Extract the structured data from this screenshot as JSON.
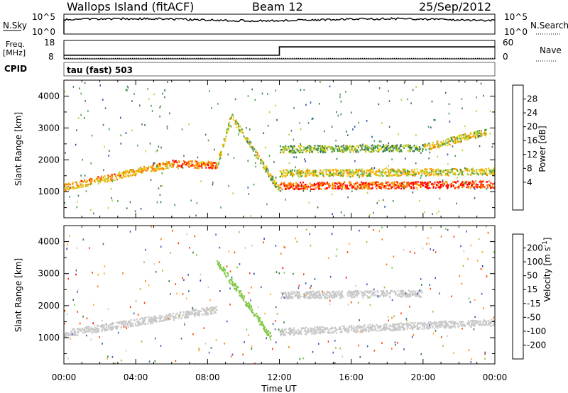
{
  "header": {
    "station": "Wallops Island (fitACF)",
    "beam": "Beam 12",
    "date": "25/Sep/2012"
  },
  "noise_panel": {
    "left_label": "N.Sky",
    "right_label": "N.Search",
    "left_ticks": [
      "10^5",
      "10^0"
    ],
    "right_ticks": [
      "10^5",
      "10^0"
    ]
  },
  "freq_panel": {
    "left_label_1": "Freq.",
    "left_label_2": "[MHz]",
    "right_label": "Nave",
    "left_ticks": [
      "18",
      "8"
    ],
    "right_ticks": [
      "60",
      "0"
    ],
    "cpid_label": "CPID",
    "cpid_value": "tau (fast) 503"
  },
  "colorbars": {
    "power": {
      "label": "Power [dB]",
      "ticks": [
        "28",
        "24",
        "20",
        "16",
        "12",
        "8",
        "4"
      ],
      "colors": [
        "#ff0000",
        "#ff6a00",
        "#ff9900",
        "#f0c800",
        "#b4d23c",
        "#46a046",
        "#3c7850",
        "#2850a0",
        "#0000ff"
      ]
    },
    "velocity": {
      "label": "Velocity [m s^-1]",
      "ticks": [
        "200",
        "100",
        "50",
        "15",
        "-15",
        "-50",
        "-100",
        "-200"
      ],
      "colors": [
        "#1e32b4",
        "#3c5ab4",
        "#2e7d32",
        "#82c846",
        "#c8c8c8",
        "#ffa532",
        "#ff7800",
        "#ff3c00",
        "#ff0000"
      ]
    }
  },
  "axes": {
    "ylabel": "Slant Range [km]",
    "yticks": [
      "1000",
      "2000",
      "3000",
      "4000"
    ],
    "xticks": [
      "00:00",
      "04:00",
      "08:00",
      "12:00",
      "16:00",
      "20:00",
      "00:00"
    ],
    "xlabel": "Time UT"
  },
  "chart_data": {
    "type": "heatmap",
    "x_range_hours": [
      0,
      24
    ],
    "y_range_km": [
      180,
      4500
    ],
    "power_features": [
      {
        "from": 0.0,
        "to": 6.0,
        "range_start": 1150,
        "range_end": 1900,
        "power_db": 20
      },
      {
        "from": 6.0,
        "to": 8.5,
        "range_start": 1900,
        "range_end": 1850,
        "power_db": 24
      },
      {
        "from": 8.5,
        "to": 9.3,
        "range_start": 1850,
        "range_end": 3400,
        "power_db": 16
      },
      {
        "from": 9.3,
        "to": 12.0,
        "range_start": 3400,
        "range_end": 1050,
        "power_db": 14
      },
      {
        "from": 12.0,
        "to": 24.0,
        "range_start": 1200,
        "range_end": 1250,
        "power_db": 26
      },
      {
        "from": 12.0,
        "to": 24.0,
        "range_start": 1600,
        "range_end": 1650,
        "power_db": 16
      },
      {
        "from": 12.0,
        "to": 20.0,
        "range_start": 2350,
        "range_end": 2400,
        "power_db": 12
      },
      {
        "from": 20.0,
        "to": 23.5,
        "range_start": 2400,
        "range_end": 2900,
        "power_db": 16
      }
    ],
    "velocity_features": [
      {
        "from": 0.0,
        "to": 8.5,
        "range_start": 1150,
        "range_end": 1900,
        "velocity_ms": 0
      },
      {
        "from": 8.5,
        "to": 11.5,
        "range_start": 3400,
        "range_end": 1050,
        "velocity_ms": 30
      },
      {
        "from": 12.0,
        "to": 24.0,
        "range_start": 1200,
        "range_end": 1500,
        "velocity_ms": 0
      },
      {
        "from": 12.0,
        "to": 20.0,
        "range_start": 2350,
        "range_end": 2400,
        "velocity_ms": 0
      }
    ],
    "frequency_mhz": [
      {
        "from": 0.0,
        "to": 12.0,
        "value": 10.0
      },
      {
        "from": 12.0,
        "to": 24.0,
        "value": 14.5
      }
    ],
    "nave": [
      {
        "from": 0.0,
        "to": 24.0,
        "value": 2
      }
    ],
    "noise_sky_log10": 3.6
  }
}
